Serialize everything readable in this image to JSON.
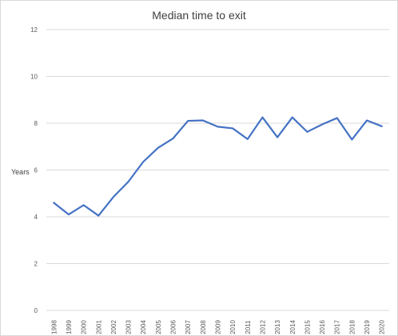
{
  "chart_data": {
    "type": "line",
    "title": "Median time to exit",
    "xlabel": "",
    "ylabel": "Years",
    "ylim": [
      0,
      12
    ],
    "yticks": [
      0,
      2,
      4,
      6,
      8,
      10,
      12
    ],
    "grid": true,
    "legend": "none",
    "categories": [
      "1998",
      "1999",
      "2000",
      "2001",
      "2002",
      "2003",
      "2004",
      "2005",
      "2006",
      "2007",
      "2008",
      "2009",
      "2010",
      "2011",
      "2012",
      "2013",
      "2014",
      "2015",
      "2016",
      "2017",
      "2018",
      "2019",
      "2020"
    ],
    "series": [
      {
        "values": [
          4.6,
          4.1,
          4.5,
          4.05,
          4.85,
          5.5,
          6.35,
          6.95,
          7.35,
          8.1,
          8.12,
          7.85,
          7.78,
          7.32,
          8.25,
          7.4,
          8.25,
          7.63,
          7.95,
          8.22,
          7.3,
          8.12,
          7.87
        ],
        "color": "#4472c4"
      }
    ]
  }
}
